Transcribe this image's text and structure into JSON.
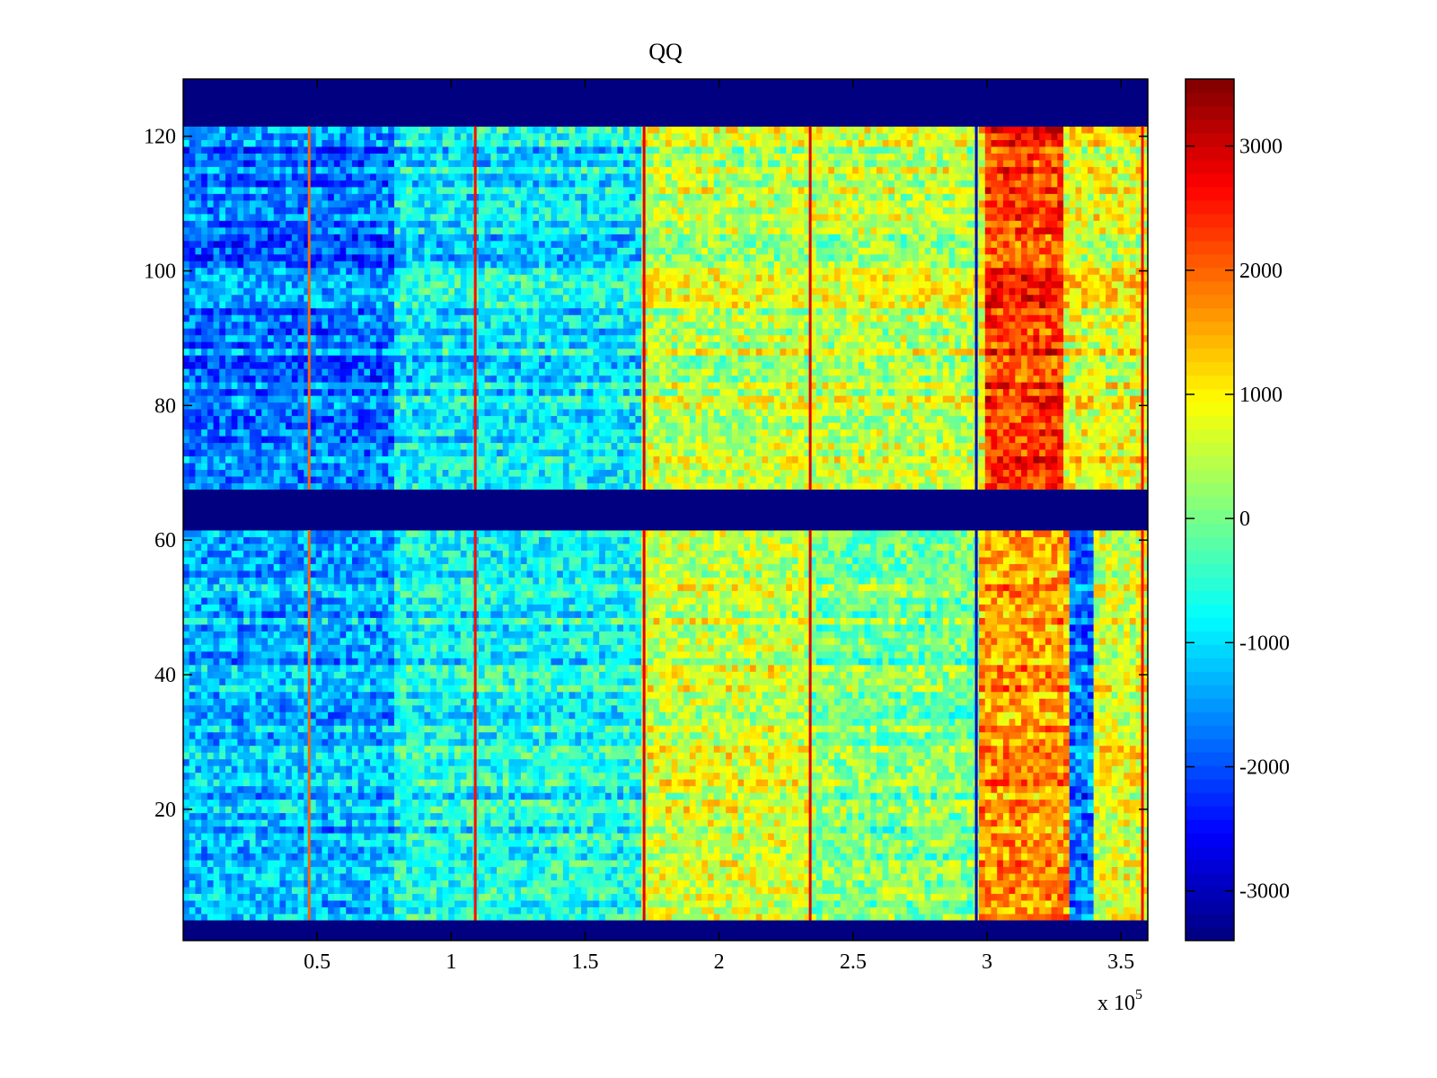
{
  "chart_data": {
    "type": "heatmap",
    "title": "QQ",
    "xlabel": "",
    "ylabel": "",
    "x_multiplier_label": "x 10",
    "x_multiplier_exponent": "5",
    "xlim": [
      0,
      3.6
    ],
    "ylim": [
      0.5,
      128.5
    ],
    "xticks": [
      0.5,
      1,
      1.5,
      2,
      2.5,
      3,
      3.5
    ],
    "xtick_labels": [
      "0.5",
      "1",
      "1.5",
      "2",
      "2.5",
      "3",
      "3.5"
    ],
    "yticks": [
      20,
      40,
      60,
      80,
      100,
      120
    ],
    "ytick_labels": [
      "20",
      "40",
      "60",
      "80",
      "100",
      "120"
    ],
    "colormap": "jet",
    "clim": [
      -3400,
      3540
    ],
    "colorbar_ticks": [
      -3000,
      -2000,
      -1000,
      0,
      1000,
      2000,
      3000
    ],
    "colorbar_tick_labels": [
      "-3000",
      "-2000",
      "-1000",
      "0",
      "1000",
      "2000",
      "3000"
    ],
    "empty_row_bands": [
      [
        121.5,
        128.5
      ],
      [
        61.5,
        67.5
      ],
      [
        0.5,
        3.5
      ]
    ],
    "empty_value": -3400,
    "column_segments_upper": [
      {
        "x": [
          0,
          0.78
        ],
        "mean": -1700
      },
      {
        "x": [
          0.78,
          1.72
        ],
        "mean": -900
      },
      {
        "x": [
          1.72,
          2.96
        ],
        "mean": 500
      },
      {
        "x": [
          2.96,
          3.0
        ],
        "mean": 900
      },
      {
        "x": [
          3.0,
          3.28
        ],
        "mean": 2300
      },
      {
        "x": [
          3.28,
          3.6
        ],
        "mean": 800
      }
    ],
    "column_segments_lower": [
      {
        "x": [
          0,
          0.78
        ],
        "mean": -1300
      },
      {
        "x": [
          0.78,
          1.72
        ],
        "mean": -700
      },
      {
        "x": [
          1.72,
          2.34
        ],
        "mean": 600
      },
      {
        "x": [
          2.34,
          2.96
        ],
        "mean": 0
      },
      {
        "x": [
          2.96,
          3.3
        ],
        "mean": 1600
      },
      {
        "x": [
          3.3,
          3.4
        ],
        "mean": -1800
      },
      {
        "x": [
          3.4,
          3.6
        ],
        "mean": 700
      }
    ],
    "vertical_lines": [
      {
        "x": 0.47,
        "value": 2000
      },
      {
        "x": 1.09,
        "value": 2600
      },
      {
        "x": 1.72,
        "value": 2900
      },
      {
        "x": 2.34,
        "value": 2900
      },
      {
        "x": 2.96,
        "value": -3000
      },
      {
        "x": 3.58,
        "value": 2600
      }
    ]
  }
}
